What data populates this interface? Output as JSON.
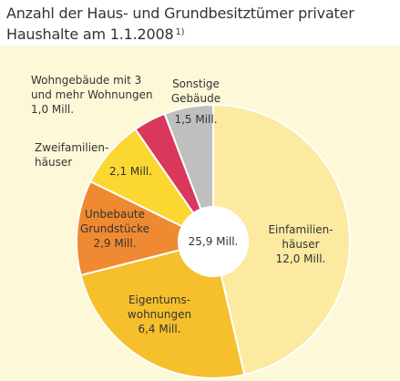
{
  "title": "Anzahl der Haus- und Grundbesitztümer privater Haushalte am 1.1.2008",
  "footnote": "1)",
  "center_label": "25,9 Mill.",
  "chart_data": {
    "type": "pie",
    "donut": true,
    "title": "Anzahl der Haus- und Grundbesitztümer privater Haushalte am 1.1.2008",
    "total": 25.9,
    "total_label": "25,9 Mill.",
    "unit": "Mill.",
    "slices": [
      {
        "id": "einfamilienhaeuser",
        "lines": [
          "Einfamilien-",
          "häuser",
          "12,0 Mill."
        ],
        "value": 12.0,
        "color": "#fbeaa0"
      },
      {
        "id": "eigentumswohnungen",
        "lines": [
          "Eigentums-",
          "wohnungen",
          "6,4 Mill."
        ],
        "value": 6.4,
        "color": "#f5c02c"
      },
      {
        "id": "unbebaute-grundstuecke",
        "lines": [
          "Unbebaute",
          "Grundstücke",
          "2,9 Mill."
        ],
        "value": 2.9,
        "color": "#ef8a32"
      },
      {
        "id": "zweifamilienhaeuser",
        "lines": [
          "Zweifamilien-",
          "häuser",
          "2,1 Mill."
        ],
        "value": 2.1,
        "color": "#fbd732"
      },
      {
        "id": "wohngebaeude-3-wohnungen",
        "lines": [
          "Wohngebäude mit 3",
          "und mehr Wohnungen",
          "1,0 Mill."
        ],
        "value": 1.0,
        "color": "#d9375b"
      },
      {
        "id": "sonstige-gebaeude",
        "lines": [
          "Sonstige",
          "Gebäude",
          "1,5 Mill."
        ],
        "value": 1.5,
        "color": "#bfbfbf"
      }
    ]
  }
}
